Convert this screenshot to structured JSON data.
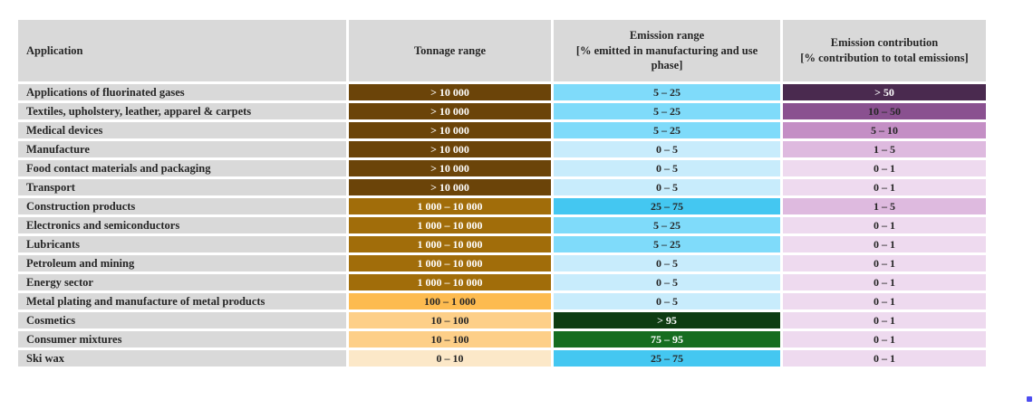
{
  "page": {
    "background": "#ffffff"
  },
  "colors": {
    "header_bg": "#d9d9d9",
    "label_bg": "#d9d9d9",
    "text_dark": "#262626",
    "text_light": "#ffffff",
    "brown_dark": "#6b4409",
    "brown_mid": "#a16d0a",
    "orange": "#fdbb50",
    "orange_light": "#fdcf88",
    "cream": "#fce8c8",
    "blue_sky": "#7fdbfa",
    "blue_pale": "#c8ecfc",
    "blue_mid": "#44c7f1",
    "green_dark": "#0e3c12",
    "green_mid": "#166d20",
    "purple_dark": "#4a2a4f",
    "purple_mid": "#8a5190",
    "purple_light": "#c48fc5",
    "pink_light": "#debadf",
    "pink_pale": "#eedaef",
    "stray_dot": "#4d4df0"
  },
  "table": {
    "columns": [
      {
        "label": "Application"
      },
      {
        "label": "Tonnage range"
      },
      {
        "label": "Emission range\n[% emitted in manufacturing and use phase]"
      },
      {
        "label": "Emission contribution\n[% contribution to total emissions]"
      }
    ],
    "rows": [
      {
        "application": "Applications of fluorinated gases",
        "tonnage": {
          "text": "> 10 000",
          "color": "brown_dark",
          "text_style": "light"
        },
        "emission": {
          "text": "5 – 25",
          "color": "blue_sky",
          "text_style": "dark"
        },
        "contribution": {
          "text": "> 50",
          "color": "purple_dark",
          "text_style": "light"
        }
      },
      {
        "application": "Textiles, upholstery, leather, apparel & carpets",
        "tonnage": {
          "text": "> 10 000",
          "color": "brown_dark",
          "text_style": "light"
        },
        "emission": {
          "text": "5 – 25",
          "color": "blue_sky",
          "text_style": "dark"
        },
        "contribution": {
          "text": "10 – 50",
          "color": "purple_mid",
          "text_style": "dark"
        }
      },
      {
        "application": "Medical devices",
        "tonnage": {
          "text": "> 10 000",
          "color": "brown_dark",
          "text_style": "light"
        },
        "emission": {
          "text": "5 – 25",
          "color": "blue_sky",
          "text_style": "dark"
        },
        "contribution": {
          "text": "5 – 10",
          "color": "purple_light",
          "text_style": "dark"
        }
      },
      {
        "application": "Manufacture",
        "tonnage": {
          "text": "> 10 000",
          "color": "brown_dark",
          "text_style": "light"
        },
        "emission": {
          "text": "0 – 5",
          "color": "blue_pale",
          "text_style": "dark"
        },
        "contribution": {
          "text": "1 – 5",
          "color": "pink_light",
          "text_style": "dark"
        }
      },
      {
        "application": "Food contact materials and packaging",
        "tonnage": {
          "text": "> 10 000",
          "color": "brown_dark",
          "text_style": "light"
        },
        "emission": {
          "text": "0 – 5",
          "color": "blue_pale",
          "text_style": "dark"
        },
        "contribution": {
          "text": "0 – 1",
          "color": "pink_pale",
          "text_style": "dark"
        }
      },
      {
        "application": "Transport",
        "tonnage": {
          "text": "> 10 000",
          "color": "brown_dark",
          "text_style": "light"
        },
        "emission": {
          "text": "0 – 5",
          "color": "blue_pale",
          "text_style": "dark"
        },
        "contribution": {
          "text": "0 – 1",
          "color": "pink_pale",
          "text_style": "dark"
        }
      },
      {
        "application": "Construction products",
        "tonnage": {
          "text": "1 000 – 10 000",
          "color": "brown_mid",
          "text_style": "light"
        },
        "emission": {
          "text": "25 – 75",
          "color": "blue_mid",
          "text_style": "dark"
        },
        "contribution": {
          "text": "1 – 5",
          "color": "pink_light",
          "text_style": "dark"
        }
      },
      {
        "application": "Electronics and semiconductors",
        "tonnage": {
          "text": "1 000 – 10 000",
          "color": "brown_mid",
          "text_style": "light"
        },
        "emission": {
          "text": "5 – 25",
          "color": "blue_sky",
          "text_style": "dark"
        },
        "contribution": {
          "text": "0 – 1",
          "color": "pink_pale",
          "text_style": "dark"
        }
      },
      {
        "application": "Lubricants",
        "tonnage": {
          "text": "1 000 – 10 000",
          "color": "brown_mid",
          "text_style": "light"
        },
        "emission": {
          "text": "5 – 25",
          "color": "blue_sky",
          "text_style": "dark"
        },
        "contribution": {
          "text": "0 – 1",
          "color": "pink_pale",
          "text_style": "dark"
        }
      },
      {
        "application": "Petroleum and mining",
        "tonnage": {
          "text": "1 000 – 10 000",
          "color": "brown_mid",
          "text_style": "light"
        },
        "emission": {
          "text": "0 – 5",
          "color": "blue_pale",
          "text_style": "dark"
        },
        "contribution": {
          "text": "0 – 1",
          "color": "pink_pale",
          "text_style": "dark"
        }
      },
      {
        "application": "Energy sector",
        "tonnage": {
          "text": "1 000 – 10 000",
          "color": "brown_mid",
          "text_style": "light"
        },
        "emission": {
          "text": "0 – 5",
          "color": "blue_pale",
          "text_style": "dark"
        },
        "contribution": {
          "text": "0 – 1",
          "color": "pink_pale",
          "text_style": "dark"
        }
      },
      {
        "application": "Metal plating and manufacture of metal products",
        "tonnage": {
          "text": "100 – 1 000",
          "color": "orange",
          "text_style": "dark"
        },
        "emission": {
          "text": "0 – 5",
          "color": "blue_pale",
          "text_style": "dark"
        },
        "contribution": {
          "text": "0 – 1",
          "color": "pink_pale",
          "text_style": "dark"
        }
      },
      {
        "application": "Cosmetics",
        "tonnage": {
          "text": "10 – 100",
          "color": "orange_light",
          "text_style": "dark"
        },
        "emission": {
          "text": "> 95",
          "color": "green_dark",
          "text_style": "light"
        },
        "contribution": {
          "text": "0 – 1",
          "color": "pink_pale",
          "text_style": "dark"
        }
      },
      {
        "application": "Consumer mixtures",
        "tonnage": {
          "text": "10 – 100",
          "color": "orange_light",
          "text_style": "dark"
        },
        "emission": {
          "text": "75 – 95",
          "color": "green_mid",
          "text_style": "light"
        },
        "contribution": {
          "text": "0 – 1",
          "color": "pink_pale",
          "text_style": "dark"
        }
      },
      {
        "application": "Ski wax",
        "tonnage": {
          "text": "0 – 10",
          "color": "cream",
          "text_style": "dark"
        },
        "emission": {
          "text": "25 – 75",
          "color": "blue_mid",
          "text_style": "dark"
        },
        "contribution": {
          "text": "0 – 1",
          "color": "pink_pale",
          "text_style": "dark"
        }
      }
    ]
  }
}
